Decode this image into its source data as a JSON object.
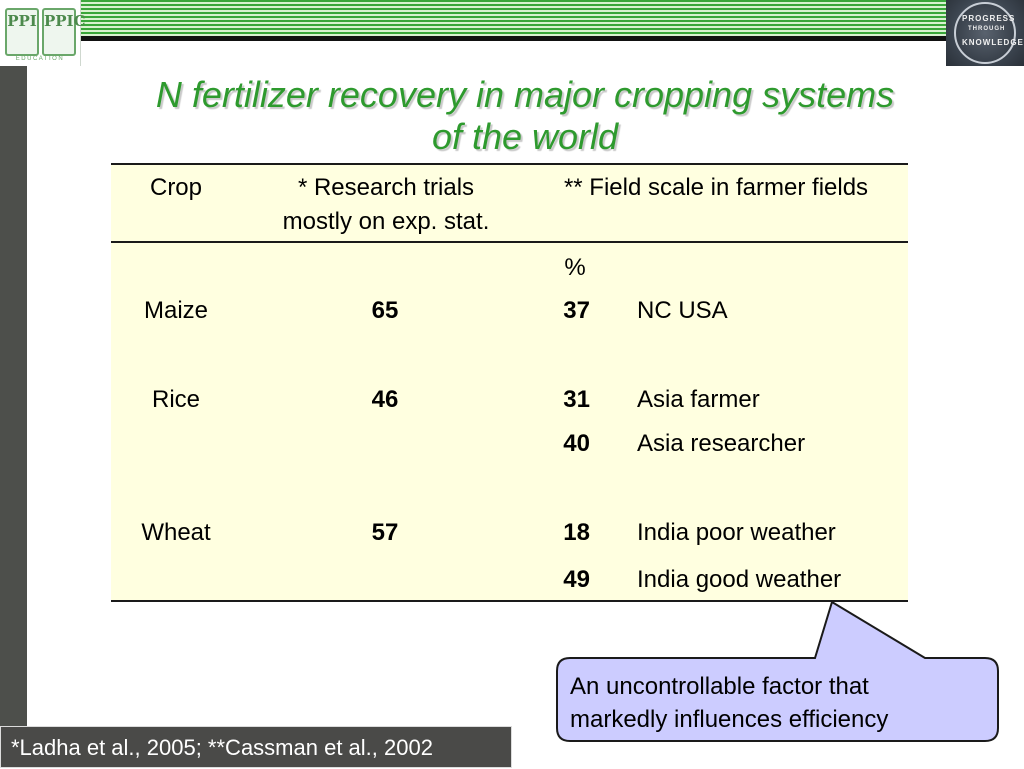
{
  "title_line1": "N fertilizer recovery in major cropping systems",
  "title_line2": "of the world",
  "logo_left": {
    "mono1": "PPI",
    "mono2": "PPIC",
    "edu": "EDUCATION"
  },
  "logo_right": {
    "word1": "PROGRESS",
    "word2": "THROUGH",
    "word3": "KNOWLEDGE"
  },
  "table": {
    "headers": {
      "crop": "Crop",
      "research_line1": "* Research trials",
      "research_line2": "mostly on exp. stat.",
      "field": "** Field scale in farmer fields"
    },
    "unit": "%",
    "rows": [
      {
        "crop": "Maize",
        "research": "65",
        "field_value": "37",
        "field_label": "NC USA"
      },
      {
        "crop": "Rice",
        "research": "46",
        "field_value": "31",
        "field_label": "Asia farmer"
      },
      {
        "crop": "",
        "research": "",
        "field_value": "40",
        "field_label": "Asia researcher"
      },
      {
        "crop": "Wheat",
        "research": "57",
        "field_value": "18",
        "field_label": "India poor weather"
      },
      {
        "crop": "",
        "research": "",
        "field_value": "49",
        "field_label": "India good weather"
      }
    ]
  },
  "callout": {
    "line1": "An uncontrollable factor that",
    "line2": "markedly influences efficiency"
  },
  "citation": "*Ladha et al., 2005; **Cassman et al., 2002",
  "colors": {
    "title": "#2e9a2e",
    "table_bg": "#ffffe0",
    "callout_bg": "#ccccff",
    "citation_bg": "#4a4a48"
  }
}
